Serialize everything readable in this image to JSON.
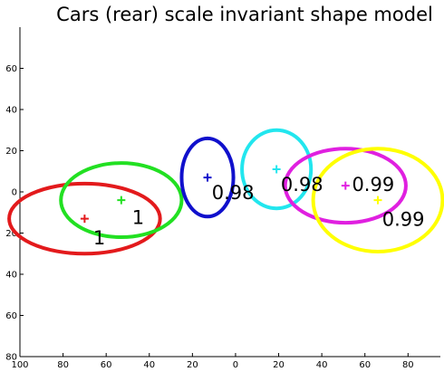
{
  "chart_data": {
    "type": "scatter",
    "title": "Cars (rear) scale invariant shape model",
    "xlabel": "",
    "ylabel": "",
    "xlim": [
      100,
      -95
    ],
    "ylim": [
      80,
      -80
    ],
    "x_reversed": true,
    "y_reversed": true,
    "x_ticks": [
      100,
      80,
      60,
      40,
      20,
      0,
      -20,
      -40,
      -60,
      -80
    ],
    "x_tick_labels": [
      "100",
      "80",
      "60",
      "40",
      "20",
      "0",
      "20",
      "40",
      "60",
      "80"
    ],
    "y_ticks": [
      -60,
      -40,
      -20,
      0,
      20,
      40,
      60,
      80
    ],
    "y_tick_labels": [
      "60",
      "40",
      "20",
      "0",
      "20",
      "40",
      "60",
      "80"
    ],
    "grid": false,
    "parts": [
      {
        "color": "#e31a1c",
        "center": [
          70,
          13
        ],
        "rx": 35,
        "ry": 17,
        "label": "1",
        "label_pos": [
          66,
          22
        ]
      },
      {
        "color": "#22e022",
        "center": [
          53,
          4
        ],
        "rx": 28,
        "ry": 18,
        "label": "1",
        "label_pos": [
          48,
          12
        ]
      },
      {
        "color": "#1010cc",
        "center": [
          13,
          -7
        ],
        "rx": 12,
        "ry": 19,
        "label": "0.98",
        "label_pos": [
          11,
          0
        ]
      },
      {
        "color": "#22e6ee",
        "center": [
          -19,
          -11
        ],
        "rx": 16,
        "ry": 19,
        "label": "0.98",
        "label_pos": [
          -21,
          -4
        ]
      },
      {
        "color": "#e020e0",
        "center": [
          -51,
          -3
        ],
        "rx": 28,
        "ry": 18,
        "label": "0.99",
        "label_pos": [
          -54,
          -4
        ]
      },
      {
        "color": "#ffff00",
        "center": [
          -66,
          4
        ],
        "rx": 30,
        "ry": 25,
        "label": "0.99",
        "label_pos": [
          -68,
          13
        ]
      }
    ]
  }
}
